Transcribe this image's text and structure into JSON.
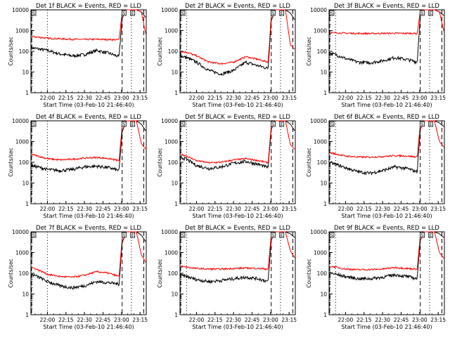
{
  "figure": {
    "start_time_label": "Start Time (03-Feb-10 21:46:40)",
    "ylabel": "Counts/sec",
    "ytick_labels": [
      "1",
      "10",
      "100",
      "1000",
      "10000"
    ],
    "xtick_labels": [
      "22:00",
      "22:15",
      "22:30",
      "22:45",
      "23:00",
      "23:15"
    ],
    "colors": {
      "events": "#000000",
      "lld": "#ff0000"
    },
    "markers": [
      "S",
      "E"
    ]
  },
  "chart_data": [
    {
      "type": "line",
      "title": "Det 1f BLACK = Events, RED = LLD",
      "x": [
        "21:46:40",
        "22:00",
        "22:10",
        "22:20",
        "22:30",
        "22:40",
        "22:50",
        "22:58",
        "23:00:30",
        "23:04",
        "23:07",
        "23:12",
        "23:16",
        "23:20"
      ],
      "series": [
        {
          "values": [
            150,
            110,
            75,
            60,
            70,
            110,
            80,
            55,
            4000,
            10000,
            10000,
            10000,
            8000,
            4000
          ]
        },
        {
          "values": [
            520,
            430,
            400,
            380,
            370,
            380,
            370,
            360,
            8000,
            10000,
            10000,
            10000,
            8000,
            500
          ]
        }
      ],
      "ylim": [
        1,
        10000
      ],
      "yscale": "log"
    },
    {
      "type": "line",
      "title": "Det 2f BLACK = Events, RED = LLD",
      "x": [
        "21:46:40",
        "21:52",
        "22:00",
        "22:10",
        "22:20",
        "22:30",
        "22:40",
        "22:50",
        "22:58",
        "23:00:30",
        "23:04",
        "23:07",
        "23:12",
        "23:16",
        "23:20"
      ],
      "series": [
        {
          "values": [
            60,
            50,
            30,
            12,
            8,
            12,
            30,
            20,
            15,
            3000,
            10000,
            10000,
            10000,
            7000,
            3000
          ]
        },
        {
          "values": [
            100,
            90,
            60,
            30,
            25,
            30,
            55,
            40,
            30,
            5000,
            10000,
            10000,
            10000,
            200,
            120
          ]
        }
      ],
      "ylim": [
        1,
        10000
      ],
      "yscale": "log"
    },
    {
      "type": "line",
      "title": "Det 3f BLACK = Events, RED = LLD",
      "x": [
        "21:46:40",
        "21:52",
        "22:00",
        "22:10",
        "22:20",
        "22:30",
        "22:40",
        "22:50",
        "22:58",
        "23:00:30",
        "23:04",
        "23:07",
        "23:12",
        "23:16",
        "23:20"
      ],
      "series": [
        {
          "values": [
            80,
            70,
            45,
            30,
            28,
            35,
            50,
            40,
            30,
            5000,
            10000,
            10000,
            10000,
            8000,
            5000
          ]
        },
        {
          "values": [
            800,
            780,
            750,
            730,
            720,
            730,
            740,
            735,
            720,
            9000,
            10000,
            10000,
            10000,
            8000,
            700
          ]
        }
      ],
      "ylim": [
        1,
        10000
      ],
      "yscale": "log"
    },
    {
      "type": "line",
      "title": "Det 4f BLACK = Events, RED = LLD",
      "x": [
        "21:46:40",
        "21:52",
        "22:00",
        "22:10",
        "22:20",
        "22:30",
        "22:40",
        "22:50",
        "22:58",
        "23:00:30",
        "23:04",
        "23:07",
        "23:12",
        "23:16",
        "23:20"
      ],
      "series": [
        {
          "values": [
            70,
            60,
            45,
            40,
            45,
            60,
            65,
            55,
            40,
            3000,
            10000,
            10000,
            10000,
            7000,
            3000
          ]
        },
        {
          "values": [
            250,
            200,
            150,
            130,
            140,
            160,
            170,
            150,
            120,
            6000,
            10000,
            10000,
            10000,
            800,
            400
          ]
        }
      ],
      "ylim": [
        1,
        10000
      ],
      "yscale": "log"
    },
    {
      "type": "line",
      "title": "Det 5f BLACK = Events, RED = LLD",
      "x": [
        "21:46:40",
        "21:52",
        "22:00",
        "22:10",
        "22:20",
        "22:30",
        "22:40",
        "22:50",
        "22:58",
        "23:00:30",
        "23:04",
        "23:07",
        "23:12",
        "23:16",
        "23:20"
      ],
      "series": [
        {
          "values": [
            180,
            140,
            70,
            50,
            60,
            90,
            110,
            80,
            55,
            4000,
            10000,
            10000,
            10000,
            7000,
            3000
          ]
        },
        {
          "values": [
            250,
            200,
            120,
            95,
            100,
            130,
            150,
            120,
            95,
            6000,
            10000,
            10000,
            10000,
            700,
            400
          ]
        }
      ],
      "ylim": [
        1,
        10000
      ],
      "yscale": "log"
    },
    {
      "type": "line",
      "title": "Det 6f BLACK = Events, RED = LLD",
      "x": [
        "21:46:40",
        "21:52",
        "22:00",
        "22:10",
        "22:20",
        "22:30",
        "22:40",
        "22:50",
        "22:58",
        "23:00:30",
        "23:04",
        "23:07",
        "23:12",
        "23:16",
        "23:20"
      ],
      "series": [
        {
          "values": [
            100,
            80,
            55,
            35,
            30,
            40,
            60,
            50,
            35,
            4000,
            10000,
            10000,
            10000,
            8000,
            5000
          ]
        },
        {
          "values": [
            300,
            250,
            200,
            180,
            175,
            190,
            210,
            200,
            180,
            7000,
            10000,
            10000,
            10000,
            1000,
            500
          ]
        }
      ],
      "ylim": [
        1,
        10000
      ],
      "yscale": "log"
    },
    {
      "type": "line",
      "title": "Det 7f BLACK = Events, RED = LLD",
      "x": [
        "21:46:40",
        "21:52",
        "22:00",
        "22:10",
        "22:20",
        "22:30",
        "22:40",
        "22:50",
        "22:58",
        "23:00:30",
        "23:04",
        "23:07",
        "23:12",
        "23:16",
        "23:20"
      ],
      "series": [
        {
          "values": [
            90,
            70,
            40,
            25,
            20,
            25,
            40,
            35,
            30,
            3000,
            10000,
            10000,
            10000,
            7000,
            3000
          ]
        },
        {
          "values": [
            200,
            150,
            90,
            70,
            65,
            80,
            120,
            100,
            70,
            5000,
            10000,
            10000,
            10000,
            800,
            300
          ]
        }
      ],
      "ylim": [
        1,
        10000
      ],
      "yscale": "log"
    },
    {
      "type": "line",
      "title": "Det 8f BLACK = Events, RED = LLD",
      "x": [
        "21:46:40",
        "21:52",
        "22:00",
        "22:10",
        "22:20",
        "22:30",
        "22:40",
        "22:50",
        "22:58",
        "23:00:30",
        "23:04",
        "23:07",
        "23:12",
        "23:16",
        "23:20"
      ],
      "series": [
        {
          "values": [
            80,
            70,
            50,
            40,
            45,
            55,
            65,
            55,
            40,
            4000,
            10000,
            10000,
            10000,
            8000,
            5000
          ]
        },
        {
          "values": [
            220,
            200,
            170,
            160,
            160,
            170,
            180,
            170,
            160,
            7000,
            10000,
            10000,
            10000,
            1200,
            500
          ]
        }
      ],
      "ylim": [
        1,
        10000
      ],
      "yscale": "log"
    },
    {
      "type": "line",
      "title": "Det 9f BLACK = Events, RED = LLD",
      "x": [
        "21:46:40",
        "21:52",
        "22:00",
        "22:10",
        "22:20",
        "22:30",
        "22:40",
        "22:50",
        "22:58",
        "23:00:30",
        "23:04",
        "23:07",
        "23:12",
        "23:16",
        "23:20"
      ],
      "series": [
        {
          "values": [
            110,
            90,
            70,
            55,
            55,
            65,
            85,
            70,
            55,
            4000,
            10000,
            10000,
            10000,
            8000,
            5000
          ]
        },
        {
          "values": [
            220,
            200,
            160,
            150,
            150,
            160,
            190,
            170,
            160,
            7000,
            10000,
            10000,
            10000,
            1000,
            500
          ]
        }
      ],
      "ylim": [
        1,
        10000
      ],
      "yscale": "log"
    }
  ]
}
